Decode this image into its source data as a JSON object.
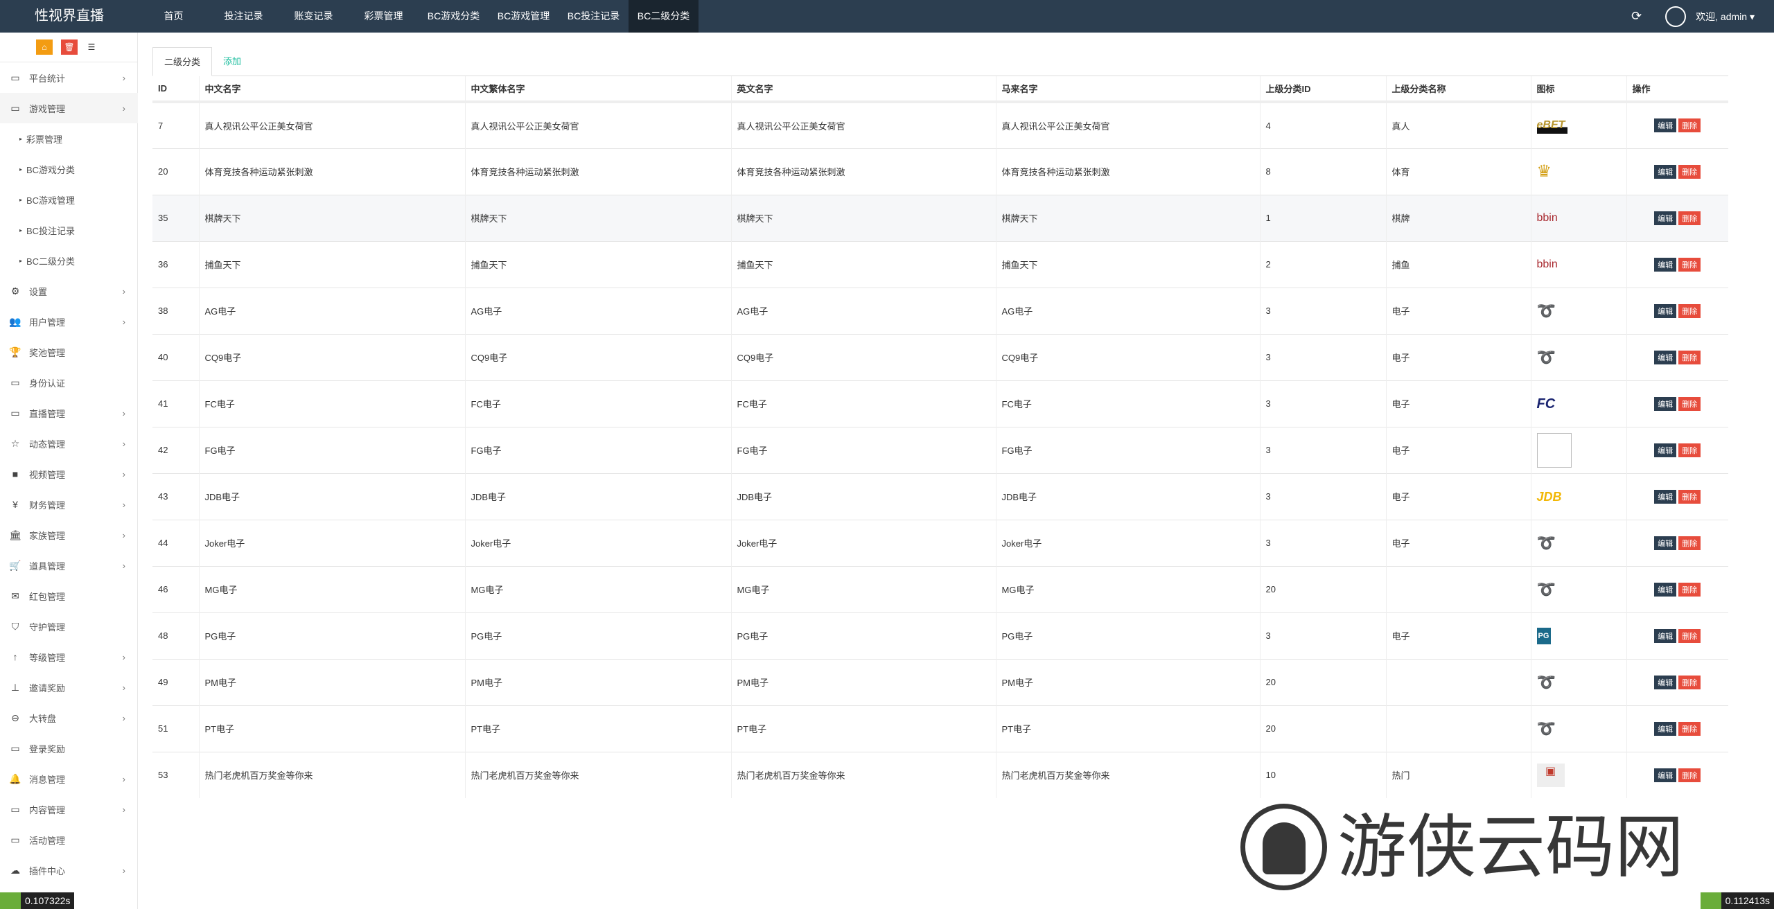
{
  "header": {
    "logo": "性视界直播",
    "nav": [
      "首页",
      "投注记录",
      "账变记录",
      "彩票管理",
      "BC游戏分类",
      "BC游戏管理",
      "BC投注记录",
      "BC二级分类"
    ],
    "active_nav": "BC二级分类",
    "welcome": "欢迎, admin"
  },
  "sidebar": {
    "items": [
      {
        "label": "平台统计",
        "icon": "desktop-icon",
        "chevron": true
      },
      {
        "label": "游戏管理",
        "icon": "desktop-icon",
        "chevron": true,
        "open": true
      },
      {
        "label": "彩票管理",
        "icon": "caret-right-icon",
        "sub": true
      },
      {
        "label": "BC游戏分类",
        "icon": "caret-right-icon",
        "sub": true
      },
      {
        "label": "BC游戏管理",
        "icon": "caret-right-icon",
        "sub": true
      },
      {
        "label": "BC投注记录",
        "icon": "caret-right-icon",
        "sub": true
      },
      {
        "label": "BC二级分类",
        "icon": "caret-right-icon",
        "sub": true
      },
      {
        "label": "设置",
        "icon": "gears-icon",
        "chevron": true
      },
      {
        "label": "用户管理",
        "icon": "users-icon",
        "chevron": true
      },
      {
        "label": "奖池管理",
        "icon": "trophy-icon"
      },
      {
        "label": "身份认证",
        "icon": "desktop-icon"
      },
      {
        "label": "直播管理",
        "icon": "desktop-icon",
        "chevron": true
      },
      {
        "label": "动态管理",
        "icon": "star-icon",
        "chevron": true
      },
      {
        "label": "视频管理",
        "icon": "video-icon",
        "chevron": true
      },
      {
        "label": "财务管理",
        "icon": "yen-icon",
        "chevron": true
      },
      {
        "label": "家族管理",
        "icon": "bank-icon",
        "chevron": true
      },
      {
        "label": "道具管理",
        "icon": "cart-icon",
        "chevron": true
      },
      {
        "label": "红包管理",
        "icon": "envelope-icon"
      },
      {
        "label": "守护管理",
        "icon": "shield-icon"
      },
      {
        "label": "等级管理",
        "icon": "level-up-icon",
        "chevron": true
      },
      {
        "label": "邀请奖励",
        "icon": "sitemap-icon",
        "chevron": true
      },
      {
        "label": "大转盘",
        "icon": "gamepad-icon",
        "chevron": true
      },
      {
        "label": "登录奖励",
        "icon": "desktop-icon"
      },
      {
        "label": "消息管理",
        "icon": "bell-icon",
        "chevron": true
      },
      {
        "label": "内容管理",
        "icon": "desktop-icon",
        "chevron": true
      },
      {
        "label": "活动管理",
        "icon": "desktop-icon"
      },
      {
        "label": "插件中心",
        "icon": "cloud-icon",
        "chevron": true
      }
    ]
  },
  "tabs": {
    "list": "二级分类",
    "add": "添加"
  },
  "table": {
    "columns": [
      "ID",
      "中文名字",
      "中文繁体名字",
      "英文名字",
      "马来名字",
      "上级分类ID",
      "上级分类名称",
      "图标",
      "操作"
    ],
    "edit_label": "编辑",
    "delete_label": "删除",
    "rows": [
      {
        "id": "7",
        "zh": "真人视讯公平公正美女荷官",
        "zht": "真人视讯公平公正美女荷官",
        "en": "真人视讯公平公正美女荷官",
        "ms": "真人视讯公平公正美女荷官",
        "pid": "4",
        "pname": "真人",
        "icon": "ebet-logo"
      },
      {
        "id": "20",
        "zh": "体育竞技各种运动紧张刺激",
        "zht": "体育竞技各种运动紧张刺激",
        "en": "体育竞技各种运动紧张刺激",
        "ms": "体育竞技各种运动紧张刺激",
        "pid": "8",
        "pname": "体育",
        "icon": "crown-logo"
      },
      {
        "id": "35",
        "zh": "棋牌天下",
        "zht": "棋牌天下",
        "en": "棋牌天下",
        "ms": "棋牌天下",
        "pid": "1",
        "pname": "棋牌",
        "icon": "bbin-logo"
      },
      {
        "id": "36",
        "zh": "捕鱼天下",
        "zht": "捕鱼天下",
        "en": "捕鱼天下",
        "ms": "捕鱼天下",
        "pid": "2",
        "pname": "捕鱼",
        "icon": "bbin-logo"
      },
      {
        "id": "38",
        "zh": "AG电子",
        "zht": "AG电子",
        "en": "AG电子",
        "ms": "AG电子",
        "pid": "3",
        "pname": "电子",
        "icon": "swirl-logo"
      },
      {
        "id": "40",
        "zh": "CQ9电子",
        "zht": "CQ9电子",
        "en": "CQ9电子",
        "ms": "CQ9电子",
        "pid": "3",
        "pname": "电子",
        "icon": "swirl-logo"
      },
      {
        "id": "41",
        "zh": "FC电子",
        "zht": "FC电子",
        "en": "FC电子",
        "ms": "FC电子",
        "pid": "3",
        "pname": "电子",
        "icon": "fc-logo"
      },
      {
        "id": "42",
        "zh": "FG电子",
        "zht": "FG电子",
        "en": "FG电子",
        "ms": "FG电子",
        "pid": "3",
        "pname": "电子",
        "icon": "broken-image"
      },
      {
        "id": "43",
        "zh": "JDB电子",
        "zht": "JDB电子",
        "en": "JDB电子",
        "ms": "JDB电子",
        "pid": "3",
        "pname": "电子",
        "icon": "jdb-logo"
      },
      {
        "id": "44",
        "zh": "Joker电子",
        "zht": "Joker电子",
        "en": "Joker电子",
        "ms": "Joker电子",
        "pid": "3",
        "pname": "电子",
        "icon": "swirl-logo"
      },
      {
        "id": "46",
        "zh": "MG电子",
        "zht": "MG电子",
        "en": "MG电子",
        "ms": "MG电子",
        "pid": "20",
        "pname": "",
        "icon": "swirl-logo"
      },
      {
        "id": "48",
        "zh": "PG电子",
        "zht": "PG电子",
        "en": "PG电子",
        "ms": "PG电子",
        "pid": "3",
        "pname": "电子",
        "icon": "pg-logo"
      },
      {
        "id": "49",
        "zh": "PM电子",
        "zht": "PM电子",
        "en": "PM电子",
        "ms": "PM电子",
        "pid": "20",
        "pname": "",
        "icon": "swirl-logo"
      },
      {
        "id": "51",
        "zh": "PT电子",
        "zht": "PT电子",
        "en": "PT电子",
        "ms": "PT电子",
        "pid": "20",
        "pname": "",
        "icon": "swirl-logo"
      },
      {
        "id": "53",
        "zh": "热门老虎机百万奖金等你来",
        "zht": "热门老虎机百万奖金等你来",
        "en": "热门老虎机百万奖金等你来",
        "ms": "热门老虎机百万奖金等你来",
        "pid": "10",
        "pname": "热门",
        "icon": "slot-logo"
      }
    ]
  },
  "timers": {
    "left": "0.107322s",
    "right": "0.112413s"
  },
  "watermark": "游侠云码网",
  "colors": {
    "topbar": "#2c3e50",
    "edit": "#2c3e50",
    "delete": "#e74c3c",
    "link": "#18bc9c"
  }
}
